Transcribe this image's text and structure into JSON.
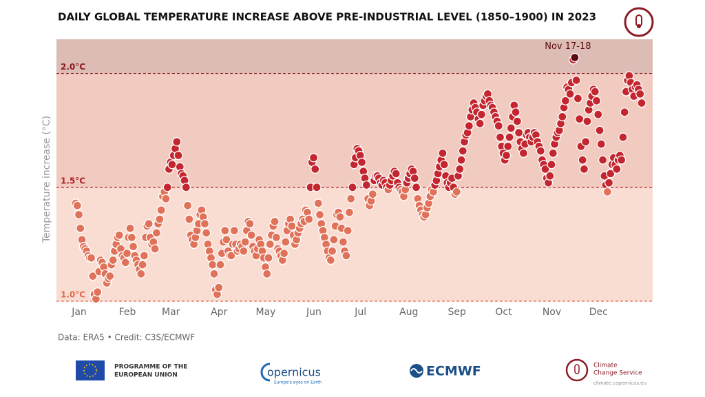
{
  "chart_data": {
    "type": "scatter",
    "title": "DAILY GLOBAL TEMPERATURE INCREASE ABOVE PRE-INDUSTRIAL LEVEL (1850–1900) IN 2023",
    "y_label": "Temperature increase (°C)",
    "credit": "Data: ERA5 • Credit: C3S/ECMWF",
    "annotation": "Nov 17-18",
    "categories": [
      "Jan",
      null,
      null,
      null,
      null,
      null,
      null,
      null,
      null,
      null,
      null,
      null,
      null,
      null,
      null,
      null,
      null,
      null,
      null,
      null,
      null,
      null,
      null,
      null,
      null,
      null,
      null,
      null,
      null,
      null,
      null,
      "Feb",
      null,
      null,
      null,
      null,
      null,
      null,
      null,
      null,
      null,
      null,
      null,
      null,
      null,
      null,
      null,
      null,
      null,
      null,
      null,
      null,
      null,
      null,
      null,
      null,
      null,
      null,
      null,
      "Mar",
      null,
      null,
      null,
      null,
      null,
      null,
      null,
      null,
      null,
      null,
      null,
      null,
      null,
      null,
      null,
      null,
      null,
      null,
      null,
      null,
      null,
      null,
      null,
      null,
      null,
      null,
      null,
      null,
      null,
      null,
      "Apr",
      null,
      null,
      null,
      null,
      null,
      null,
      null,
      null,
      null,
      null,
      null,
      null,
      null,
      null,
      null,
      null,
      null,
      null,
      null,
      null,
      null,
      null,
      null,
      null,
      null,
      null,
      null,
      null,
      null,
      "May",
      null,
      null,
      null,
      null,
      null,
      null,
      null,
      null,
      null,
      null,
      null,
      null,
      null,
      null,
      null,
      null,
      null,
      null,
      null,
      null,
      null,
      null,
      null,
      null,
      null,
      null,
      null,
      null,
      null,
      null,
      "Jun",
      null,
      null,
      null,
      null,
      null,
      null,
      null,
      null,
      null,
      null,
      null,
      null,
      null,
      null,
      null,
      null,
      null,
      null,
      null,
      null,
      null,
      null,
      null,
      null,
      null,
      null,
      null,
      null,
      null,
      "Jul",
      null,
      null,
      null,
      null,
      null,
      null,
      null,
      null,
      null,
      null,
      null,
      null,
      null,
      null,
      null,
      null,
      null,
      null,
      null,
      null,
      null,
      null,
      null,
      null,
      null,
      null,
      null,
      null,
      null,
      null,
      "Aug",
      null,
      null,
      null,
      null,
      null,
      null,
      null,
      null,
      null,
      null,
      null,
      null,
      null,
      null,
      null,
      null,
      null,
      null,
      null,
      null,
      null,
      null,
      null,
      null,
      null,
      null,
      null,
      null,
      null,
      null,
      "Sep",
      null,
      null,
      null,
      null,
      null,
      null,
      null,
      null,
      null,
      null,
      null,
      null,
      null,
      null,
      null,
      null,
      null,
      null,
      null,
      null,
      null,
      null,
      null,
      null,
      null,
      null,
      null,
      null,
      null,
      "Oct",
      null,
      null,
      null,
      null,
      null,
      null,
      null,
      null,
      null,
      null,
      null,
      null,
      null,
      null,
      null,
      null,
      null,
      null,
      null,
      null,
      null,
      null,
      null,
      null,
      null,
      null,
      null,
      null,
      null,
      null,
      "Nov",
      null,
      null,
      null,
      null,
      null,
      null,
      null,
      null,
      null,
      null,
      null,
      null,
      null,
      null,
      null,
      null,
      null,
      null,
      null,
      null,
      null,
      null,
      null,
      null,
      null,
      null,
      null,
      null,
      null,
      "Dec",
      null,
      null,
      null,
      null,
      null,
      null,
      null,
      null,
      null,
      null,
      null,
      null,
      null,
      null,
      null,
      null,
      null,
      null,
      null,
      null,
      null,
      null,
      null,
      null,
      null,
      null,
      null,
      null,
      null,
      null
    ],
    "values": [
      1.43,
      1.42,
      1.38,
      1.32,
      1.27,
      1.24,
      1.23,
      1.22,
      1.2,
      1.19,
      1.19,
      1.11,
      1.03,
      1.01,
      1.04,
      1.13,
      1.18,
      1.17,
      1.15,
      1.12,
      1.08,
      1.1,
      1.11,
      1.16,
      1.18,
      1.22,
      1.25,
      1.28,
      1.29,
      1.23,
      1.2,
      1.19,
      1.17,
      1.21,
      1.28,
      1.32,
      1.28,
      1.24,
      1.2,
      1.18,
      1.16,
      1.14,
      1.12,
      1.16,
      1.2,
      1.28,
      1.33,
      1.34,
      1.28,
      1.25,
      1.26,
      1.23,
      1.3,
      1.34,
      1.36,
      1.4,
      1.46,
      1.48,
      1.45,
      1.5,
      1.58,
      1.61,
      1.6,
      1.64,
      1.67,
      1.7,
      1.64,
      1.59,
      1.56,
      1.55,
      1.53,
      1.5,
      1.42,
      1.36,
      1.29,
      1.27,
      1.25,
      1.28,
      1.31,
      1.34,
      1.38,
      1.4,
      1.37,
      1.34,
      1.3,
      1.25,
      1.22,
      1.19,
      1.16,
      1.12,
      1.05,
      1.03,
      1.06,
      1.16,
      1.21,
      1.26,
      1.31,
      1.27,
      1.22,
      1.2,
      1.2,
      1.25,
      1.31,
      1.25,
      1.22,
      1.23,
      1.25,
      1.24,
      1.22,
      1.26,
      1.31,
      1.35,
      1.34,
      1.29,
      1.24,
      1.22,
      1.2,
      1.23,
      1.27,
      1.25,
      1.22,
      1.19,
      1.15,
      1.12,
      1.19,
      1.25,
      1.29,
      1.33,
      1.35,
      1.28,
      1.23,
      1.22,
      1.2,
      1.18,
      1.21,
      1.26,
      1.31,
      1.34,
      1.36,
      1.33,
      1.29,
      1.25,
      1.27,
      1.3,
      1.32,
      1.34,
      1.36,
      1.35,
      1.4,
      1.39,
      1.36,
      1.5,
      1.61,
      1.63,
      1.58,
      1.5,
      1.43,
      1.38,
      1.34,
      1.31,
      1.28,
      1.25,
      1.22,
      1.19,
      1.18,
      1.22,
      1.27,
      1.33,
      1.38,
      1.39,
      1.37,
      1.32,
      1.26,
      1.22,
      1.2,
      1.31,
      1.39,
      1.45,
      1.5,
      1.6,
      1.63,
      1.67,
      1.66,
      1.64,
      1.61,
      1.57,
      1.54,
      1.51,
      1.45,
      1.42,
      1.44,
      1.47,
      1.53,
      1.55,
      1.55,
      1.54,
      1.52,
      1.51,
      1.53,
      1.52,
      1.5,
      1.49,
      1.51,
      1.53,
      1.55,
      1.57,
      1.56,
      1.52,
      1.5,
      1.49,
      1.48,
      1.46,
      1.49,
      1.52,
      1.54,
      1.56,
      1.58,
      1.57,
      1.54,
      1.5,
      1.45,
      1.42,
      1.4,
      1.38,
      1.37,
      1.38,
      1.41,
      1.43,
      1.46,
      1.49,
      1.48,
      1.51,
      1.53,
      1.56,
      1.59,
      1.62,
      1.65,
      1.6,
      1.55,
      1.52,
      1.5,
      1.52,
      1.54,
      1.5,
      1.47,
      1.48,
      1.55,
      1.58,
      1.62,
      1.66,
      1.7,
      1.73,
      1.74,
      1.77,
      1.81,
      1.84,
      1.87,
      1.85,
      1.83,
      1.8,
      1.78,
      1.82,
      1.86,
      1.88,
      1.9,
      1.91,
      1.88,
      1.86,
      1.85,
      1.83,
      1.81,
      1.79,
      1.77,
      1.72,
      1.68,
      1.65,
      1.62,
      1.64,
      1.68,
      1.72,
      1.76,
      1.81,
      1.86,
      1.83,
      1.79,
      1.74,
      1.7,
      1.67,
      1.65,
      1.69,
      1.73,
      1.74,
      1.72,
      1.7,
      1.72,
      1.74,
      1.73,
      1.7,
      1.68,
      1.66,
      1.62,
      1.6,
      1.58,
      1.54,
      1.52,
      1.55,
      1.6,
      1.65,
      1.69,
      1.72,
      1.74,
      1.75,
      1.78,
      1.81,
      1.85,
      1.88,
      1.94,
      1.93,
      1.91,
      1.96,
      2.06,
      2.07,
      1.97,
      1.89,
      1.8,
      1.68,
      1.62,
      1.58,
      1.7,
      1.79,
      1.84,
      1.87,
      1.9,
      1.93,
      1.92,
      1.88,
      1.82,
      1.75,
      1.69,
      1.62,
      1.55,
      1.51,
      1.48,
      1.52,
      1.56,
      1.6,
      1.63,
      1.6,
      1.58,
      1.62,
      1.64,
      1.62,
      1.72,
      1.83,
      1.92,
      1.97,
      1.99,
      1.96,
      1.93,
      1.9,
      1.94,
      1.95,
      1.93,
      1.91,
      1.87
    ],
    "ylim": [
      1.0,
      2.15
    ],
    "yticks": [
      {
        "value": 1.0,
        "label": "1.0°C"
      },
      {
        "value": 1.5,
        "label": "1.5°C"
      },
      {
        "value": 2.0,
        "label": "2.0°C"
      }
    ],
    "tick_colors": [
      "#e2694c",
      "#b31f2a",
      "#8c1b23"
    ],
    "band_colors": [
      "#f9ddd2",
      "#f1cac0",
      "#dcbcb5"
    ],
    "colors": {
      "low": "#e0725a",
      "high": "#c3262f",
      "peak": "#5c0b13"
    }
  },
  "logos": {
    "eu": [
      "PROGRAMME OF THE",
      "EUROPEAN UNION"
    ],
    "copernicus": "opernicus",
    "copernicus_tagline": "Europe's eyes on Earth",
    "ecmwf": "ECMWF",
    "c3s": [
      "Climate",
      "Change Service"
    ],
    "c3s_url": "climate.copernicus.eu"
  }
}
